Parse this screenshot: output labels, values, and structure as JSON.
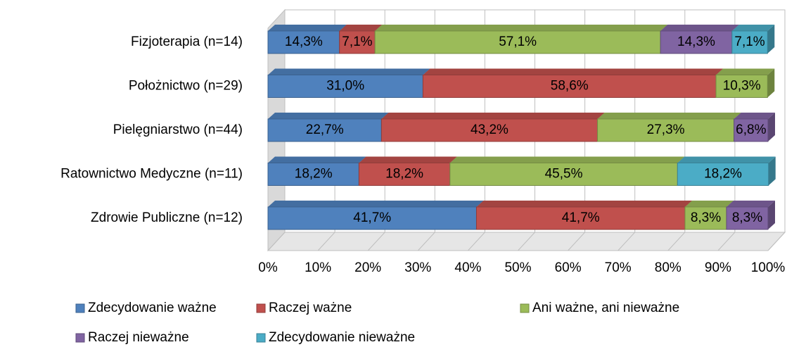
{
  "chart_data": {
    "type": "bar",
    "orientation": "horizontal",
    "stacked": true,
    "categories": [
      "Fizjoterapia (n=14)",
      "Położnictwo (n=29)",
      "Pielęgniarstwo (n=44)",
      "Ratownictwo Medyczne (n=11)",
      "Zdrowie Publiczne (n=12)"
    ],
    "series": [
      {
        "name": "Zdecydowanie ważne",
        "color": "#4f81bd",
        "values": [
          14.3,
          31.0,
          22.7,
          18.2,
          41.7
        ],
        "value_labels": [
          "14,3%",
          "31,0%",
          "22,7%",
          "18,2%",
          "41,7%"
        ]
      },
      {
        "name": "Raczej ważne",
        "color": "#c0504d",
        "values": [
          7.1,
          58.6,
          43.2,
          18.2,
          41.7
        ],
        "value_labels": [
          "7,1%",
          "58,6%",
          "43,2%",
          "18,2%",
          "41,7%"
        ]
      },
      {
        "name": "Ani ważne, ani nieważne",
        "color": "#9bbb59",
        "values": [
          57.1,
          10.3,
          27.3,
          45.5,
          8.3
        ],
        "value_labels": [
          "57,1%",
          "10,3%",
          "27,3%",
          "45,5%",
          "8,3%"
        ]
      },
      {
        "name": "Raczej nieważne",
        "color": "#8064a2",
        "values": [
          14.3,
          null,
          6.8,
          null,
          8.3
        ],
        "value_labels": [
          "14,3%",
          null,
          "6,8%",
          null,
          "8,3%"
        ]
      },
      {
        "name": "Zdecydowanie nieważne",
        "color": "#4bacc6",
        "values": [
          7.1,
          null,
          null,
          18.2,
          null
        ],
        "value_labels": [
          "7,1%",
          null,
          null,
          "18,2%",
          null
        ]
      }
    ],
    "xlim": [
      0,
      100
    ],
    "xticks": [
      {
        "value": 0,
        "label": "0%"
      },
      {
        "value": 10,
        "label": "10%"
      },
      {
        "value": 20,
        "label": "20%"
      },
      {
        "value": 30,
        "label": "30%"
      },
      {
        "value": 40,
        "label": "40%"
      },
      {
        "value": 50,
        "label": "50%"
      },
      {
        "value": 60,
        "label": "60%"
      },
      {
        "value": 70,
        "label": "70%"
      },
      {
        "value": 80,
        "label": "80%"
      },
      {
        "value": 90,
        "label": "90%"
      },
      {
        "value": 100,
        "label": "100%"
      }
    ],
    "grid": true,
    "legend": "bottom"
  }
}
